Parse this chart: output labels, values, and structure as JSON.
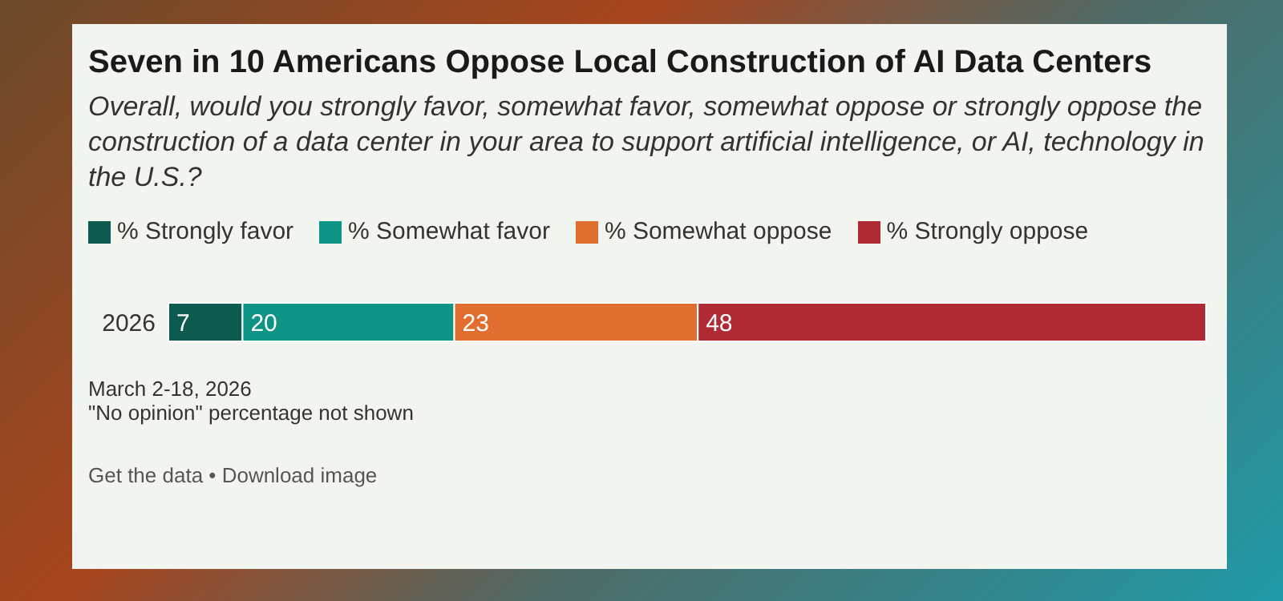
{
  "chart_data": {
    "type": "bar",
    "title": "Seven in 10 Americans Oppose Local Construction of AI Data Centers",
    "subtitle": "Overall, would you strongly favor, somewhat favor, somewhat oppose or strongly oppose the construction of a data center in your area to support artificial intelligence, or AI, technology in the U.S.?",
    "categories": [
      "2026"
    ],
    "series": [
      {
        "name": "% Strongly favor",
        "color": "#0d5a4f",
        "values": [
          7
        ]
      },
      {
        "name": "% Somewhat favor",
        "color": "#0e9484",
        "values": [
          20
        ]
      },
      {
        "name": "% Somewhat oppose",
        "color": "#e06f2f",
        "values": [
          23
        ]
      },
      {
        "name": "% Strongly oppose",
        "color": "#b02a33",
        "values": [
          48
        ]
      }
    ],
    "stacked": true,
    "orientation": "horizontal",
    "data_labels": true,
    "legend": "top",
    "grid": false,
    "annotations": [
      "March 2-18, 2026",
      "\"No opinion\" percentage not shown",
      "Get the data • Download image"
    ]
  }
}
